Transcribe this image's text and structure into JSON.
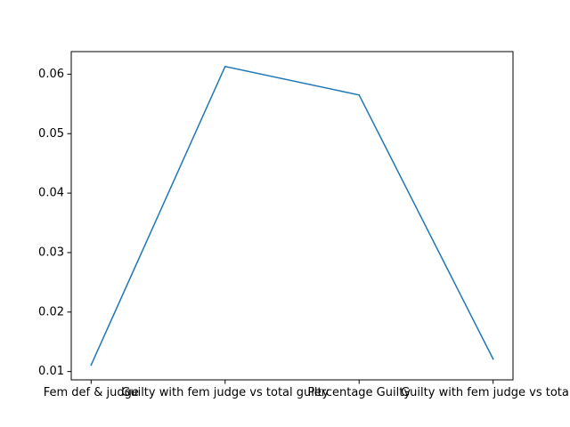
{
  "chart_data": {
    "type": "line",
    "categories": [
      "Fem def & judge",
      "Guilty with fem judge vs total guilty",
      "Percentage Guilty",
      "Guilty with fem judge vs total w"
    ],
    "series": [
      {
        "values": [
          0.0111,
          0.0613,
          0.0565,
          0.0121
        ],
        "color": "#1f77b4"
      }
    ],
    "y_ticks": [
      0.01,
      0.02,
      0.03,
      0.04,
      0.05,
      0.06
    ],
    "ylim": [
      0.0086,
      0.0638
    ],
    "title": "",
    "xlabel": "",
    "ylabel": "",
    "grid": false,
    "legend": false
  }
}
